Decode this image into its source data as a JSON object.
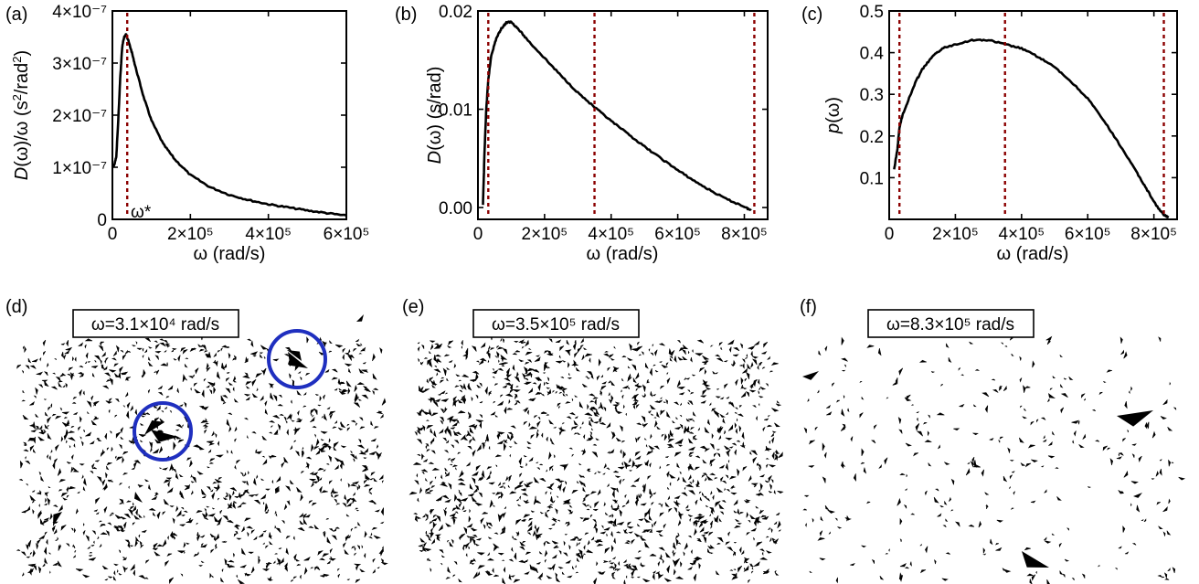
{
  "panel_letters": [
    "(a)",
    "(b)",
    "(c)",
    "(d)",
    "(e)",
    "(f)"
  ],
  "annotations": {
    "omega_star": "ω*"
  },
  "chart_data": [
    {
      "type": "line",
      "panel": "(a)",
      "xlabel": "ω (rad/s)",
      "ylabel": "D(ω)/ω (s²/rad²)",
      "xlim": [
        0,
        600000
      ],
      "ylim": [
        0,
        4e-07
      ],
      "x_ticks": [
        {
          "v": 0,
          "label": "0"
        },
        {
          "v": 200000,
          "label": "2×10⁵"
        },
        {
          "v": 400000,
          "label": "4×10⁵"
        },
        {
          "v": 600000,
          "label": "6×10⁵"
        }
      ],
      "y_ticks": [
        {
          "v": 0,
          "label": "0"
        },
        {
          "v": 1e-07,
          "label": "1×10⁻⁷"
        },
        {
          "v": 2e-07,
          "label": "2×10⁻⁷"
        },
        {
          "v": 3e-07,
          "label": "3×10⁻⁷"
        },
        {
          "v": 4e-07,
          "label": "4×10⁻⁷"
        }
      ],
      "vlines": [
        38000
      ],
      "series": [
        {
          "x": [
            0,
            5000,
            10000,
            15000,
            20000,
            25000,
            30000,
            35000,
            40000,
            50000,
            60000,
            80000,
            100000,
            130000,
            160000,
            200000,
            250000,
            300000,
            350000,
            400000,
            450000,
            500000,
            550000,
            600000
          ],
          "y": [
            1e-07,
            1.05e-07,
            1.2e-07,
            1.9e-07,
            2.7e-07,
            3.3e-07,
            3.5e-07,
            3.55e-07,
            3.45e-07,
            3.2e-07,
            2.9e-07,
            2.35e-07,
            1.9e-07,
            1.45e-07,
            1.15e-07,
            8.5e-08,
            6.2e-08,
            4.7e-08,
            3.7e-08,
            2.9e-08,
            2.3e-08,
            1.7e-08,
            1.2e-08,
            7e-09
          ]
        }
      ]
    },
    {
      "type": "line",
      "panel": "(b)",
      "xlabel": "ω (rad/s)",
      "ylabel": "D(ω) (s/rad)",
      "xlim": [
        0,
        870000
      ],
      "ylim": [
        -0.0012,
        0.02
      ],
      "x_ticks": [
        {
          "v": 0,
          "label": "0"
        },
        {
          "v": 200000,
          "label": "2×10⁵"
        },
        {
          "v": 400000,
          "label": "4×10⁵"
        },
        {
          "v": 600000,
          "label": "6×10⁵"
        },
        {
          "v": 800000,
          "label": "8×10⁵"
        }
      ],
      "y_ticks": [
        {
          "v": 0,
          "label": "0.00"
        },
        {
          "v": 0.01,
          "label": "0.01"
        },
        {
          "v": 0.02,
          "label": "0.02"
        }
      ],
      "vlines": [
        31000,
        350000,
        830000
      ],
      "series": [
        {
          "x": [
            15000,
            20000,
            25000,
            31000,
            40000,
            55000,
            70000,
            85000,
            100000,
            120000,
            150000,
            200000,
            250000,
            300000,
            350000,
            400000,
            450000,
            500000,
            550000,
            600000,
            650000,
            700000,
            750000,
            800000,
            820000
          ],
          "y": [
            0.0002,
            0.006,
            0.01,
            0.013,
            0.0155,
            0.0172,
            0.0182,
            0.0188,
            0.0189,
            0.0182,
            0.017,
            0.0152,
            0.0134,
            0.0117,
            0.0102,
            0.0088,
            0.0075,
            0.0062,
            0.005,
            0.0038,
            0.0027,
            0.0017,
            0.0008,
            0.0001,
            -0.0003
          ]
        }
      ]
    },
    {
      "type": "line",
      "panel": "(c)",
      "xlabel": "ω (rad/s)",
      "ylabel": "p(ω)",
      "xlim": [
        0,
        870000
      ],
      "ylim": [
        0,
        0.5
      ],
      "x_ticks": [
        {
          "v": 0,
          "label": "0"
        },
        {
          "v": 200000,
          "label": "2×10⁵"
        },
        {
          "v": 400000,
          "label": "4×10⁵"
        },
        {
          "v": 600000,
          "label": "6×10⁵"
        },
        {
          "v": 800000,
          "label": "8×10⁵"
        }
      ],
      "y_ticks": [
        {
          "v": 0.1,
          "label": "0.1"
        },
        {
          "v": 0.2,
          "label": "0.2"
        },
        {
          "v": 0.3,
          "label": "0.3"
        },
        {
          "v": 0.4,
          "label": "0.4"
        },
        {
          "v": 0.5,
          "label": "0.5"
        }
      ],
      "vlines": [
        31000,
        350000,
        830000
      ],
      "series": [
        {
          "x": [
            15000,
            25000,
            31000,
            40000,
            60000,
            80000,
            100000,
            130000,
            160000,
            200000,
            250000,
            300000,
            350000,
            400000,
            450000,
            500000,
            550000,
            600000,
            650000,
            700000,
            750000,
            780000,
            810000,
            830000,
            845000
          ],
          "y": [
            0.12,
            0.17,
            0.22,
            0.25,
            0.29,
            0.33,
            0.36,
            0.39,
            0.41,
            0.42,
            0.43,
            0.43,
            0.42,
            0.41,
            0.39,
            0.365,
            0.33,
            0.29,
            0.235,
            0.175,
            0.11,
            0.07,
            0.03,
            0.01,
            0.005
          ]
        }
      ]
    }
  ],
  "fields": [
    {
      "panel": "(d)",
      "label": "ω=3.1×10⁴ rad/s",
      "circles": 2
    },
    {
      "panel": "(e)",
      "label": "ω=3.5×10⁵ rad/s",
      "circles": 0
    },
    {
      "panel": "(f)",
      "label": "ω=8.3×10⁵ rad/s",
      "circles": 0
    }
  ],
  "colors": {
    "line": "#000000",
    "marker_line": "#8b0000",
    "circle": "#1f2fbf"
  }
}
